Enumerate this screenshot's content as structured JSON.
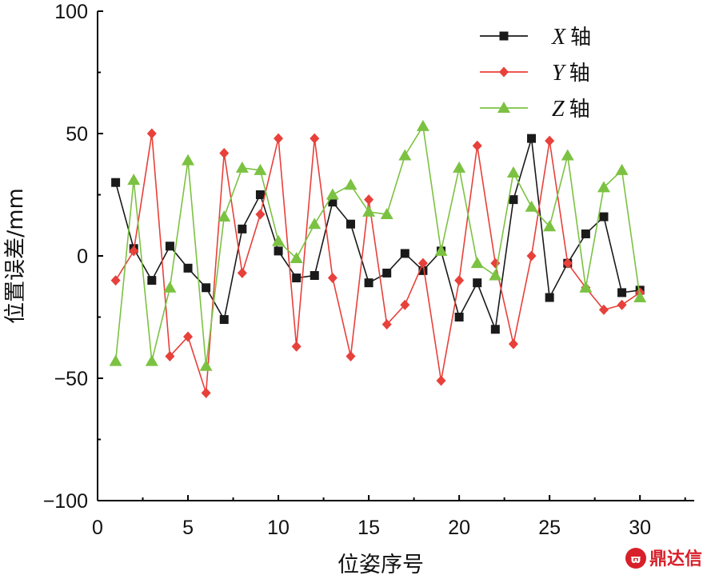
{
  "chart_data": {
    "type": "line",
    "title": "",
    "xlabel": "位姿序号",
    "ylabel": "位置误差/mm",
    "xlim": [
      0,
      33
    ],
    "ylim": [
      -100,
      100
    ],
    "xticks": [
      0,
      5,
      10,
      15,
      20,
      25,
      30
    ],
    "yticks": [
      -100,
      -50,
      0,
      50,
      100
    ],
    "xtick_labels": [
      "0",
      "5",
      "10",
      "15",
      "20",
      "25",
      "30"
    ],
    "ytick_labels": [
      "−100",
      "−50",
      "0",
      "50",
      "100"
    ],
    "grid": false,
    "legend_position": "top-right",
    "x": [
      1,
      2,
      3,
      4,
      5,
      6,
      7,
      8,
      9,
      10,
      11,
      12,
      13,
      14,
      15,
      16,
      17,
      18,
      19,
      20,
      21,
      22,
      23,
      24,
      25,
      26,
      27,
      28,
      29,
      30
    ],
    "series": [
      {
        "name": "X轴",
        "legend_var": "X",
        "legend_suffix": "轴",
        "color": "#1a1a1a",
        "marker": "square",
        "values": [
          30,
          3,
          -10,
          4,
          -5,
          -13,
          -26,
          11,
          25,
          2,
          -9,
          -8,
          22,
          13,
          -11,
          -7,
          1,
          -6,
          2,
          -25,
          -11,
          -30,
          23,
          48,
          -17,
          -3,
          9,
          16,
          -15,
          -14
        ]
      },
      {
        "name": "Y轴",
        "legend_var": "Y",
        "legend_suffix": "轴",
        "color": "#e8403a",
        "marker": "diamond",
        "values": [
          -10,
          2,
          50,
          -41,
          -33,
          -56,
          42,
          -7,
          17,
          48,
          -37,
          48,
          -9,
          -41,
          23,
          -28,
          -20,
          -3,
          -51,
          -10,
          45,
          -3,
          -36,
          0,
          47,
          -3,
          -13,
          -22,
          -20,
          -15
        ]
      },
      {
        "name": "Z轴",
        "legend_var": "Z",
        "legend_suffix": "轴",
        "color": "#7cc242",
        "marker": "triangle",
        "values": [
          -43,
          31,
          -43,
          -13,
          39,
          -45,
          16,
          36,
          35,
          6,
          -1,
          13,
          25,
          29,
          18,
          17,
          41,
          53,
          2,
          36,
          -3,
          -8,
          34,
          20,
          12,
          41,
          -13,
          28,
          35,
          -17
        ]
      }
    ]
  },
  "watermark": {
    "text": "鼎达信",
    "logo": "dingdaxin-logo"
  }
}
